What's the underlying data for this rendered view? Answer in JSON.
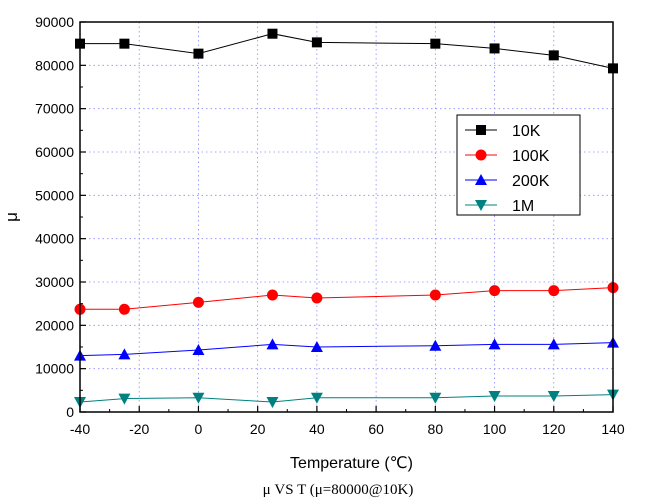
{
  "chart_data": {
    "type": "line",
    "title": "",
    "caption": "μ VS T (μ=80000@10K)",
    "xlabel": "Temperature (℃)",
    "ylabel": "μ",
    "xlim": [
      -40,
      140
    ],
    "ylim": [
      0,
      90000
    ],
    "xticks": [
      -40,
      -20,
      0,
      20,
      40,
      60,
      80,
      100,
      120,
      140
    ],
    "yticks": [
      0,
      10000,
      20000,
      30000,
      40000,
      50000,
      60000,
      70000,
      80000,
      90000
    ],
    "grid": true,
    "legend_position": "right",
    "x": [
      -40,
      -25,
      0,
      25,
      40,
      80,
      100,
      120,
      140
    ],
    "series": [
      {
        "name": "10K",
        "color": "#000000",
        "marker": "square",
        "values": [
          85000,
          85000,
          82700,
          87300,
          85300,
          85000,
          83900,
          82300,
          79300
        ]
      },
      {
        "name": "100K",
        "color": "#ff0000",
        "marker": "circle",
        "values": [
          23700,
          23700,
          25300,
          27000,
          26300,
          27000,
          28000,
          28000,
          28700
        ]
      },
      {
        "name": "200K",
        "color": "#0000ff",
        "marker": "triangle-up",
        "values": [
          13000,
          13300,
          14300,
          15600,
          15000,
          15300,
          15600,
          15600,
          16000
        ]
      },
      {
        "name": "1M",
        "color": "#008080",
        "marker": "triangle-down",
        "values": [
          2300,
          3100,
          3300,
          2300,
          3300,
          3300,
          3700,
          3700,
          4000
        ]
      }
    ]
  }
}
